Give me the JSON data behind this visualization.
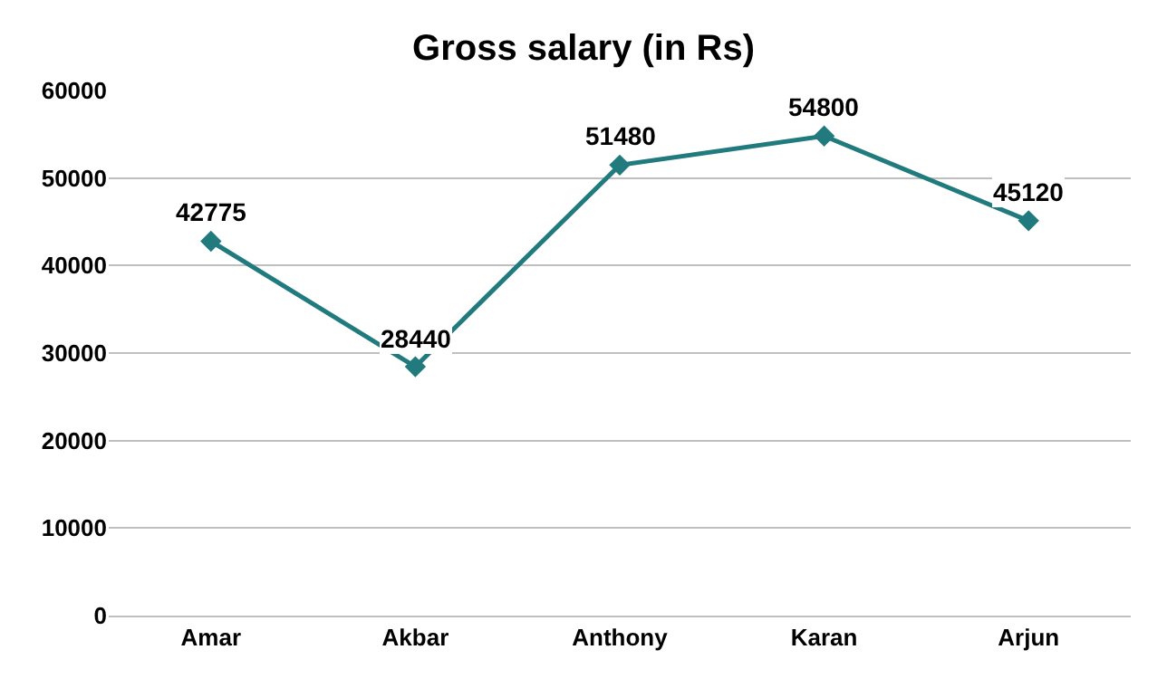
{
  "chart_data": {
    "type": "line",
    "title": "Gross salary (in Rs)",
    "categories": [
      "Amar",
      "Akbar",
      "Anthony",
      "Karan",
      "Arjun"
    ],
    "series": [
      {
        "color": "#217b7e",
        "values": [
          42775,
          28440,
          51480,
          54800,
          45120
        ]
      }
    ],
    "ylim": [
      0,
      60000
    ],
    "yticks": [
      0,
      10000,
      20000,
      30000,
      40000,
      50000,
      60000
    ],
    "grid": "y",
    "marker": "diamond",
    "line_style": "solid",
    "data_labels": true
  }
}
